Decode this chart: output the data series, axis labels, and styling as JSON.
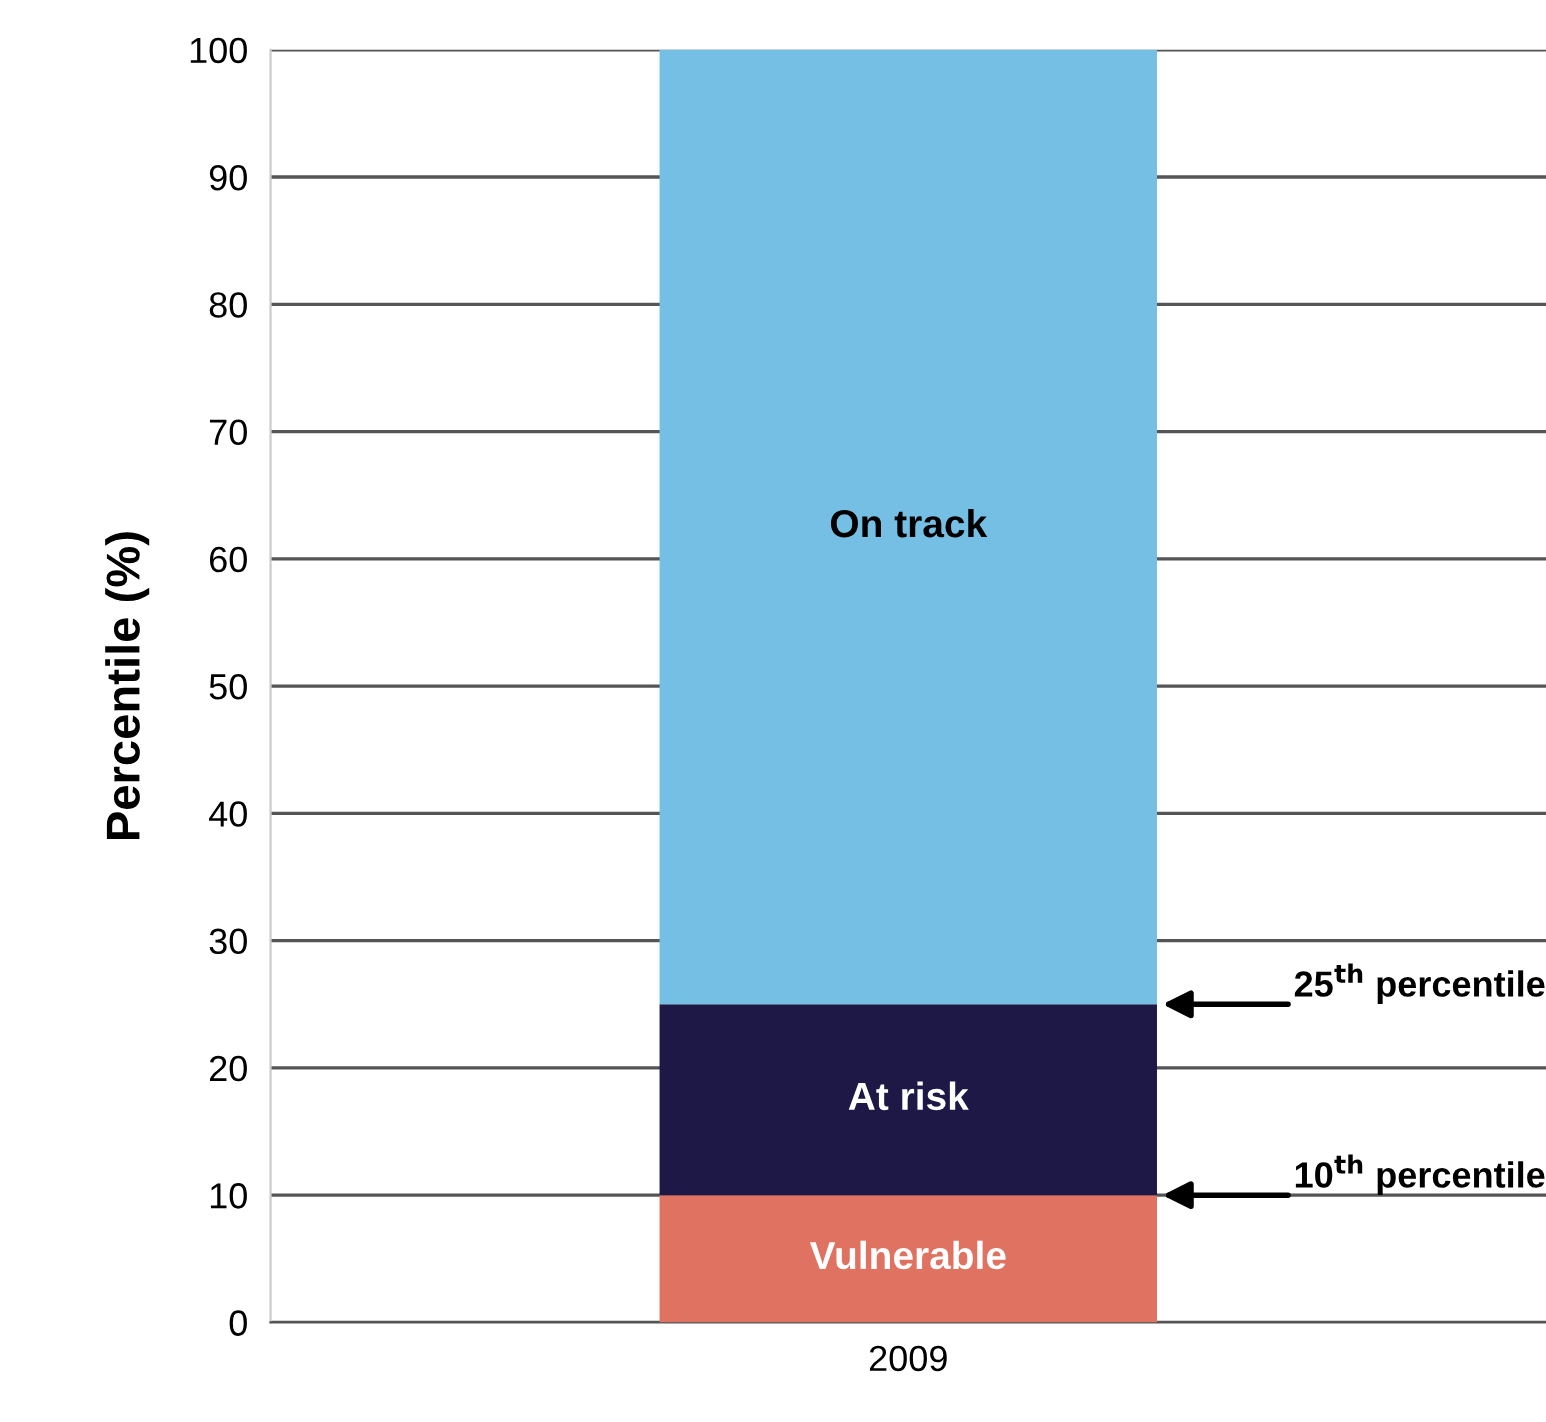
{
  "chart_data": {
    "type": "bar",
    "stacked": true,
    "ylabel": "Percentile (%)",
    "categories": [
      "2009"
    ],
    "series": [
      {
        "name": "Vulnerable",
        "color": "#e07262",
        "values": [
          10
        ]
      },
      {
        "name": "At risk",
        "color": "#1d1846",
        "values": [
          15
        ]
      },
      {
        "name": "On track",
        "color": "#74bfe3",
        "values": [
          75
        ]
      }
    ],
    "ylim": [
      0,
      100
    ],
    "yticks": [
      0,
      10,
      20,
      30,
      40,
      50,
      60,
      70,
      80,
      90,
      100
    ],
    "grid": "y",
    "legend": false,
    "annotations": [
      "25$^{th}$ percentile",
      "10$^{th}$ percentile"
    ]
  }
}
